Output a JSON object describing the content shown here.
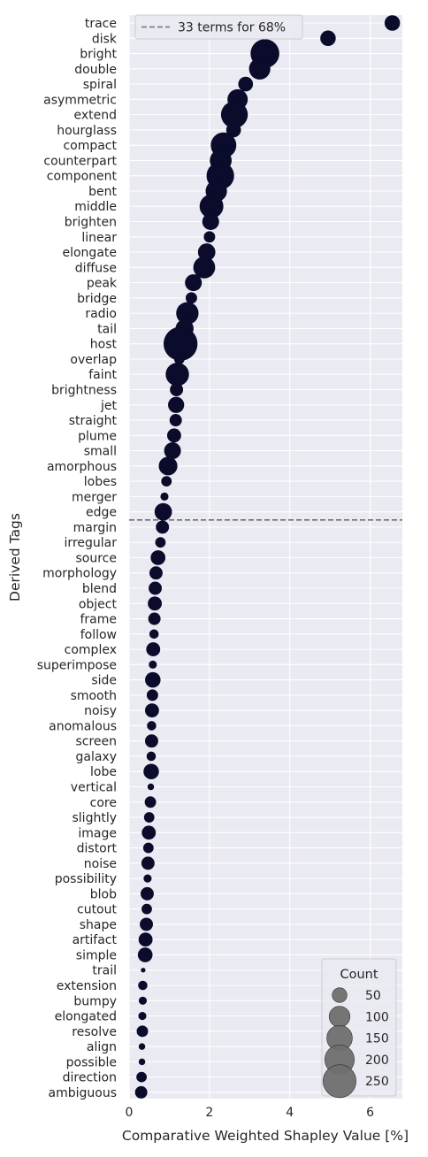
{
  "chart_data": {
    "type": "scatter",
    "xlabel": "Comparative Weighted Shapley Value [%]",
    "ylabel": "Derived Tags",
    "xlim": [
      0,
      6.8
    ],
    "x_ticks": [
      0,
      2,
      4,
      6
    ],
    "x_tick_labels": [
      "0",
      "2",
      "4",
      "6"
    ],
    "grid": true,
    "colors": {
      "background": "#eaeaf2",
      "grid": "#ffffff",
      "marker": "#0b0b2b",
      "threshold_line": "#707070",
      "legend_marker": "#6f6f6f"
    },
    "threshold": {
      "after_index": 33,
      "label": "33 terms for 68%",
      "legend_position": "top-left"
    },
    "size_legend": {
      "title": "Count",
      "position": "bottom-right",
      "entries": [
        {
          "label": "50",
          "count": 50
        },
        {
          "label": "100",
          "count": 100
        },
        {
          "label": "150",
          "count": 150
        },
        {
          "label": "200",
          "count": 200
        },
        {
          "label": "250",
          "count": 250
        }
      ]
    },
    "points": [
      {
        "tag": "trace",
        "value": 6.55,
        "count": 55
      },
      {
        "tag": "disk",
        "value": 4.95,
        "count": 55
      },
      {
        "tag": "bright",
        "value": 3.38,
        "count": 190
      },
      {
        "tag": "double",
        "value": 3.25,
        "count": 105
      },
      {
        "tag": "spiral",
        "value": 2.9,
        "count": 50
      },
      {
        "tag": "asymmetric",
        "value": 2.7,
        "count": 95
      },
      {
        "tag": "extend",
        "value": 2.62,
        "count": 165
      },
      {
        "tag": "hourglass",
        "value": 2.6,
        "count": 50
      },
      {
        "tag": "compact",
        "value": 2.35,
        "count": 150
      },
      {
        "tag": "counterpart",
        "value": 2.28,
        "count": 110
      },
      {
        "tag": "component",
        "value": 2.27,
        "count": 175
      },
      {
        "tag": "bent",
        "value": 2.17,
        "count": 105
      },
      {
        "tag": "middle",
        "value": 2.05,
        "count": 130
      },
      {
        "tag": "brighten",
        "value": 2.03,
        "count": 65
      },
      {
        "tag": "linear",
        "value": 2.0,
        "count": 30
      },
      {
        "tag": "elongate",
        "value": 1.93,
        "count": 70
      },
      {
        "tag": "diffuse",
        "value": 1.87,
        "count": 110
      },
      {
        "tag": "peak",
        "value": 1.6,
        "count": 65
      },
      {
        "tag": "bridge",
        "value": 1.55,
        "count": 30
      },
      {
        "tag": "radio",
        "value": 1.45,
        "count": 115
      },
      {
        "tag": "tail",
        "value": 1.38,
        "count": 75
      },
      {
        "tag": "host",
        "value": 1.28,
        "count": 265
      },
      {
        "tag": "overlap",
        "value": 1.25,
        "count": 25
      },
      {
        "tag": "faint",
        "value": 1.2,
        "count": 125
      },
      {
        "tag": "brightness",
        "value": 1.18,
        "count": 40
      },
      {
        "tag": "jet",
        "value": 1.17,
        "count": 60
      },
      {
        "tag": "straight",
        "value": 1.16,
        "count": 35
      },
      {
        "tag": "plume",
        "value": 1.12,
        "count": 45
      },
      {
        "tag": "small",
        "value": 1.08,
        "count": 65
      },
      {
        "tag": "amorphous",
        "value": 0.97,
        "count": 80
      },
      {
        "tag": "lobes",
        "value": 0.93,
        "count": 25
      },
      {
        "tag": "merger",
        "value": 0.88,
        "count": 15
      },
      {
        "tag": "edge",
        "value": 0.85,
        "count": 70
      },
      {
        "tag": "margin",
        "value": 0.83,
        "count": 40
      },
      {
        "tag": "irregular",
        "value": 0.78,
        "count": 25
      },
      {
        "tag": "source",
        "value": 0.72,
        "count": 50
      },
      {
        "tag": "morphology",
        "value": 0.67,
        "count": 40
      },
      {
        "tag": "blend",
        "value": 0.65,
        "count": 40
      },
      {
        "tag": "object",
        "value": 0.64,
        "count": 45
      },
      {
        "tag": "frame",
        "value": 0.63,
        "count": 35
      },
      {
        "tag": "follow",
        "value": 0.62,
        "count": 20
      },
      {
        "tag": "complex",
        "value": 0.6,
        "count": 45
      },
      {
        "tag": "superimpose",
        "value": 0.59,
        "count": 15
      },
      {
        "tag": "side",
        "value": 0.59,
        "count": 55
      },
      {
        "tag": "smooth",
        "value": 0.58,
        "count": 30
      },
      {
        "tag": "noisy",
        "value": 0.57,
        "count": 45
      },
      {
        "tag": "anomalous",
        "value": 0.56,
        "count": 20
      },
      {
        "tag": "screen",
        "value": 0.56,
        "count": 40
      },
      {
        "tag": "galaxy",
        "value": 0.55,
        "count": 20
      },
      {
        "tag": "lobe",
        "value": 0.55,
        "count": 55
      },
      {
        "tag": "vertical",
        "value": 0.54,
        "count": 10
      },
      {
        "tag": "core",
        "value": 0.53,
        "count": 30
      },
      {
        "tag": "slightly",
        "value": 0.5,
        "count": 25
      },
      {
        "tag": "image",
        "value": 0.49,
        "count": 45
      },
      {
        "tag": "distort",
        "value": 0.48,
        "count": 25
      },
      {
        "tag": "noise",
        "value": 0.47,
        "count": 40
      },
      {
        "tag": "possibility",
        "value": 0.46,
        "count": 15
      },
      {
        "tag": "blob",
        "value": 0.45,
        "count": 40
      },
      {
        "tag": "cutout",
        "value": 0.44,
        "count": 25
      },
      {
        "tag": "shape",
        "value": 0.43,
        "count": 40
      },
      {
        "tag": "artifact",
        "value": 0.41,
        "count": 45
      },
      {
        "tag": "simple",
        "value": 0.4,
        "count": 50
      },
      {
        "tag": "trail",
        "value": 0.35,
        "count": 5
      },
      {
        "tag": "extension",
        "value": 0.34,
        "count": 20
      },
      {
        "tag": "bumpy",
        "value": 0.34,
        "count": 15
      },
      {
        "tag": "elongated",
        "value": 0.33,
        "count": 15
      },
      {
        "tag": "resolve",
        "value": 0.33,
        "count": 30
      },
      {
        "tag": "align",
        "value": 0.32,
        "count": 10
      },
      {
        "tag": "possible",
        "value": 0.32,
        "count": 10
      },
      {
        "tag": "direction",
        "value": 0.31,
        "count": 25
      },
      {
        "tag": "ambiguous",
        "value": 0.3,
        "count": 35
      }
    ]
  }
}
